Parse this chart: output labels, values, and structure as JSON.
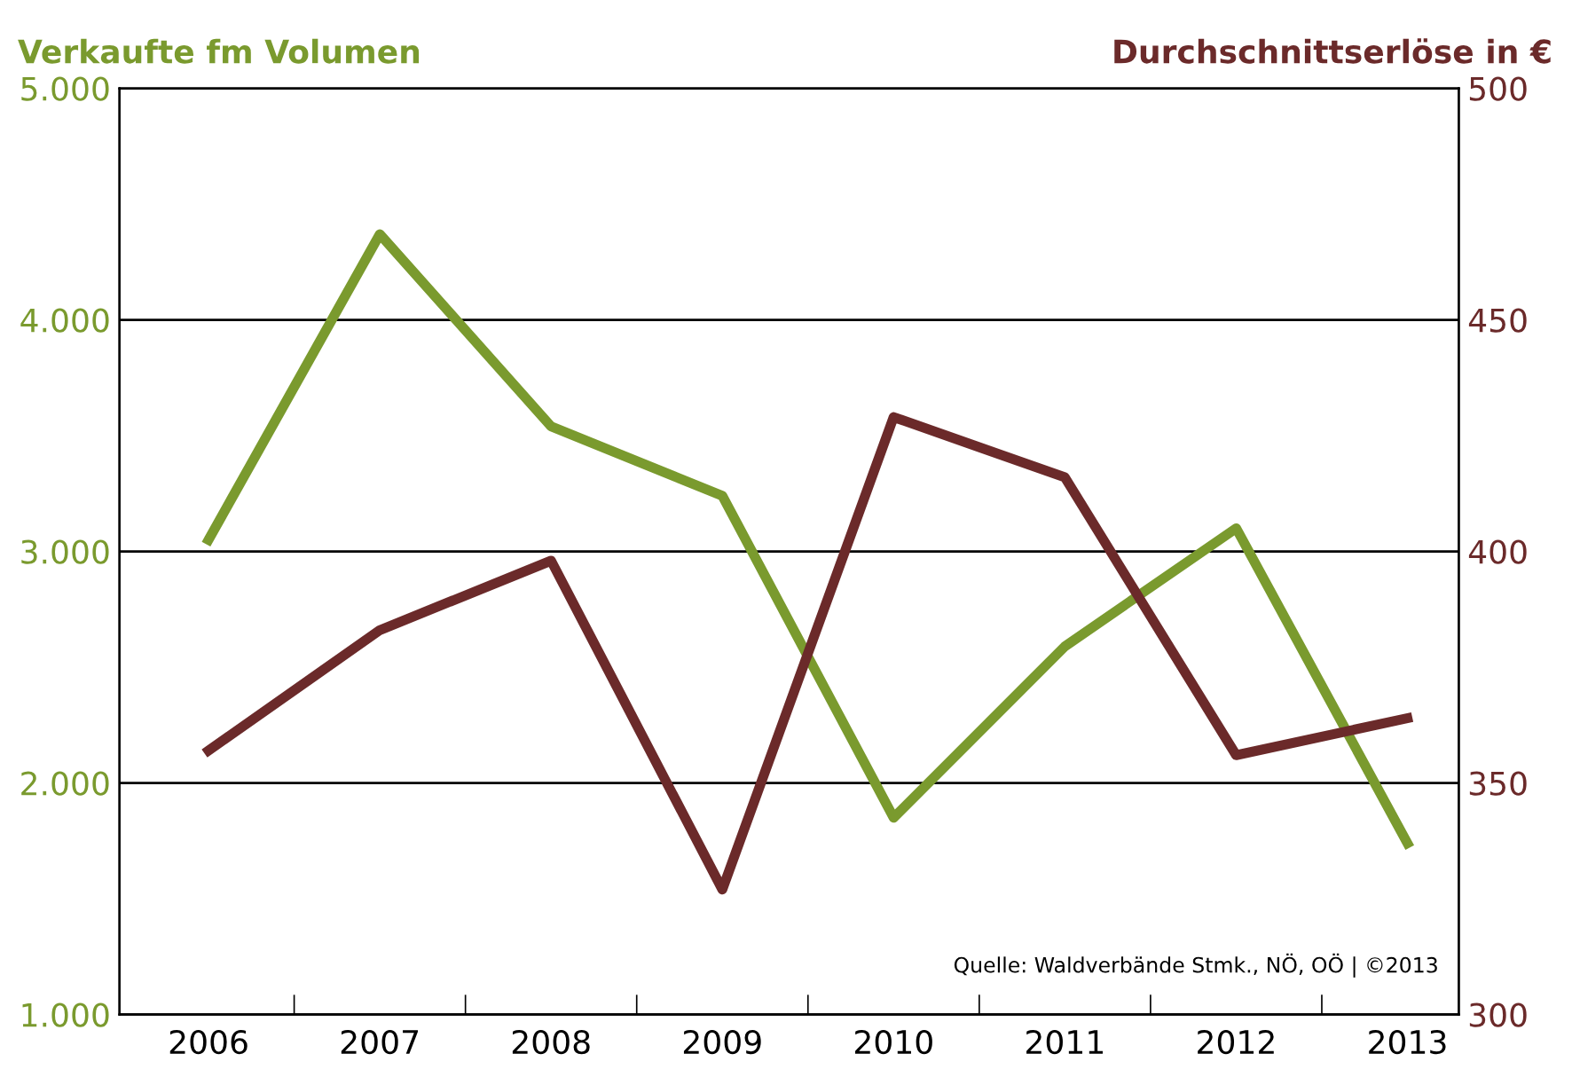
{
  "chart_data": {
    "type": "line",
    "ylabel": "Verkaufte fm Volumen",
    "y2label": "Durchschnittserlöse in €",
    "categories": [
      "2006",
      "2007",
      "2008",
      "2009",
      "2010",
      "2011",
      "2012",
      "2013"
    ],
    "series": [
      {
        "color": "#7a9a2e",
        "values": [
          3050,
          4370,
          3540,
          3240,
          1850,
          2590,
          3100,
          1740
        ]
      },
      {
        "color": "#6b2a2a",
        "axis": "y2",
        "values": [
          357,
          383,
          398,
          327,
          429,
          416,
          356,
          364
        ]
      }
    ],
    "ylim": [
      1000,
      5000
    ],
    "yticks": [
      {
        "value": 1000,
        "label": "1.000"
      },
      {
        "value": 2000,
        "label": "2.000"
      },
      {
        "value": 3000,
        "label": "3.000"
      },
      {
        "value": 4000,
        "label": "4.000"
      },
      {
        "value": 5000,
        "label": "5.000"
      }
    ],
    "y2lim": [
      300,
      500
    ],
    "y2ticks": [
      300,
      350,
      400,
      450,
      500
    ],
    "grid": "y",
    "marker": "none",
    "line_style": "solid",
    "annotations": [
      "Quelle: Waldverbände Stmk., NÖ, OÖ | ©2013"
    ]
  }
}
